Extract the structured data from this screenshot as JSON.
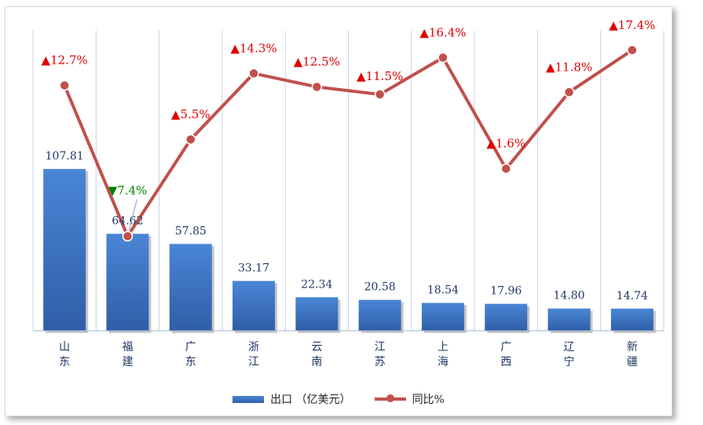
{
  "chart_data": {
    "type": "bar+line",
    "categories": [
      "山东",
      "福建",
      "广东",
      "浙江",
      "云南",
      "江苏",
      "上海",
      "广西",
      "辽宁",
      "新疆"
    ],
    "series": [
      {
        "name": "出口 （亿美元）",
        "type": "bar",
        "values": [
          107.81,
          64.62,
          57.85,
          33.17,
          22.34,
          20.58,
          18.54,
          17.96,
          14.8,
          14.74
        ],
        "labels": [
          "107.81",
          "64.62",
          "57.85",
          "33.17",
          "22.34",
          "20.58",
          "18.54",
          "17.96",
          "14.80",
          "14.74"
        ]
      },
      {
        "name": "同比%",
        "type": "line",
        "values": [
          12.7,
          -7.4,
          5.5,
          14.3,
          12.5,
          11.5,
          16.4,
          1.6,
          11.8,
          17.4
        ],
        "labels": [
          "12.7%",
          "7.4%",
          "5.5%",
          "14.3%",
          "12.5%",
          "11.5%",
          "16.4%",
          "1.6%",
          "11.8%",
          "17.4%"
        ]
      }
    ],
    "bar_ylim": [
      0,
      200
    ],
    "line_ylim": [
      -20,
      20
    ],
    "grid": "vertical",
    "legend": "bottom-center",
    "colors": {
      "bar_top": "#4a86d6",
      "bar_bottom": "#2f5ea8",
      "line": "#c0504d",
      "up": "#e00000",
      "down": "#008000",
      "grid": "#c5d3e8"
    },
    "arrows": {
      "up": "▲",
      "down": "▼"
    }
  }
}
